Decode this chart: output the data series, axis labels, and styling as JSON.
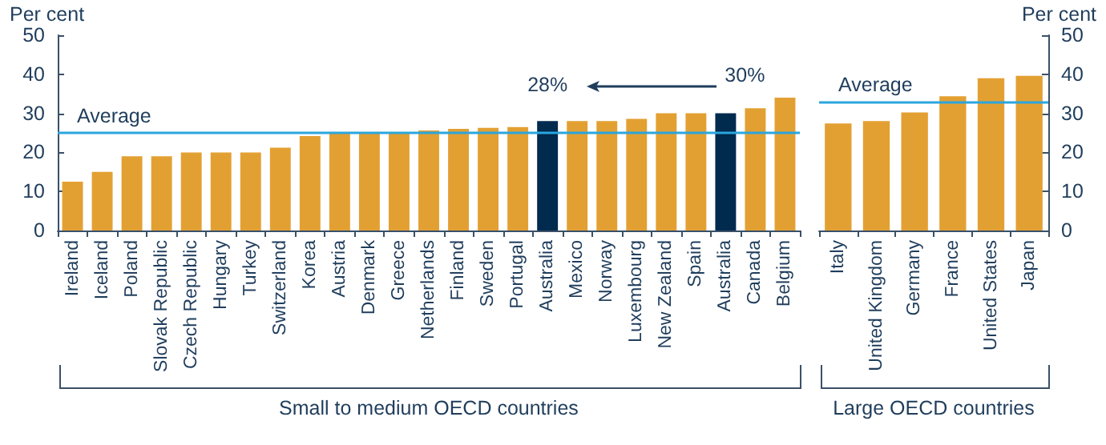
{
  "chart_data": [
    {
      "type": "bar",
      "ylabel": "Per cent",
      "categories": [
        "Ireland",
        "Iceland",
        "Poland",
        "Slovak Republic",
        "Czech Republic",
        "Hungary",
        "Turkey",
        "Switzerland",
        "Korea",
        "Austria",
        "Denmark",
        "Greece",
        "Netherlands",
        "Finland",
        "Sweden",
        "Portugal",
        "Australia",
        "Mexico",
        "Norway",
        "Luxembourg",
        "New Zealand",
        "Spain",
        "Australia",
        "Canada",
        "Belgium"
      ],
      "values": [
        12.5,
        15,
        19,
        19,
        20,
        20,
        20,
        21.2,
        24.2,
        25,
        25,
        25,
        25.6,
        26,
        26.3,
        26.5,
        28,
        28,
        28,
        28.6,
        30,
        30,
        30,
        31.3,
        34
      ],
      "colors": [
        "#e3a032",
        "#e3a032",
        "#e3a032",
        "#e3a032",
        "#e3a032",
        "#e3a032",
        "#e3a032",
        "#e3a032",
        "#e3a032",
        "#e3a032",
        "#e3a032",
        "#e3a032",
        "#e3a032",
        "#e3a032",
        "#e3a032",
        "#e3a032",
        "#002a4e",
        "#e3a032",
        "#e3a032",
        "#e3a032",
        "#e3a032",
        "#e3a032",
        "#002a4e",
        "#e3a032",
        "#e3a032"
      ],
      "ylim": [
        0,
        50
      ],
      "yticks": [
        0,
        10,
        20,
        30,
        40,
        50
      ],
      "ref_lines": [
        {
          "axis": "y",
          "value": 25,
          "label": "Average",
          "color": "#2ba6de"
        }
      ],
      "annotations": [
        "28%",
        "30%",
        "Small to medium OECD countries"
      ]
    },
    {
      "type": "bar",
      "ylabel": "Per cent",
      "categories": [
        "Italy",
        "United Kingdom",
        "Germany",
        "France",
        "United States",
        "Japan"
      ],
      "values": [
        27.4,
        28,
        30.2,
        34.4,
        39,
        39.6
      ],
      "colors": [
        "#e3a032",
        "#e3a032",
        "#e3a032",
        "#e3a032",
        "#e3a032",
        "#e3a032"
      ],
      "ylim": [
        0,
        50
      ],
      "yticks": [
        0,
        10,
        20,
        30,
        40,
        50
      ],
      "ref_lines": [
        {
          "axis": "y",
          "value": 33,
          "label": "Average",
          "color": "#2ba6de"
        }
      ],
      "annotations": [
        "Large OECD countries"
      ]
    }
  ]
}
